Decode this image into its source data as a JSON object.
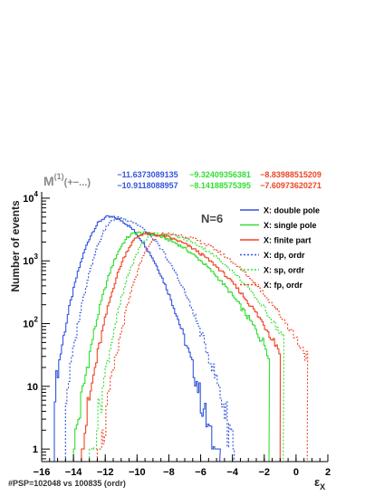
{
  "chart_data": {
    "type": "line",
    "title_main": "M",
    "title_sup": "(1)",
    "title_rest": "(+−...)",
    "annotation": "N=6",
    "ylabel": "Number of events",
    "xlabel_main": "ε",
    "xlabel_sub": "X",
    "xlim": [
      -16,
      2
    ],
    "ylim_log10": [
      -0.2,
      4.1
    ],
    "log_y": true,
    "x_ticks": [
      {
        "v": -16,
        "label": "−16"
      },
      {
        "v": -14,
        "label": "−14"
      },
      {
        "v": -12,
        "label": "−12"
      },
      {
        "v": -10,
        "label": "−10"
      },
      {
        "v": -8,
        "label": "−8"
      },
      {
        "v": -6,
        "label": "−6"
      },
      {
        "v": -4,
        "label": "−4"
      },
      {
        "v": -2,
        "label": "−2"
      },
      {
        "v": 0,
        "label": "0"
      },
      {
        "v": 2,
        "label": "2"
      }
    ],
    "y_ticks": [
      {
        "v": 1,
        "base": "1",
        "exp": ""
      },
      {
        "v": 10,
        "base": "10",
        "exp": ""
      },
      {
        "v": 100,
        "base": "10",
        "exp": "2"
      },
      {
        "v": 1000,
        "base": "10",
        "exp": "3"
      },
      {
        "v": 10000,
        "base": "10",
        "exp": "4"
      }
    ],
    "header_numbers": [
      {
        "row": 1,
        "text": "−11.6373089135",
        "color": "#3355dd"
      },
      {
        "row": 1,
        "text": "−9.32409356381",
        "color": "#33dd33"
      },
      {
        "row": 1,
        "text": "−8.83988515209",
        "color": "#ee4422"
      },
      {
        "row": 2,
        "text": "−10.9118088957",
        "color": "#3355dd"
      },
      {
        "row": 2,
        "text": "−8.14188575395",
        "color": "#33dd33"
      },
      {
        "row": 2,
        "text": "−7.60973620271",
        "color": "#ee4422"
      }
    ],
    "series": [
      {
        "name": "X: double pole",
        "color": "#3355dd",
        "dash": false,
        "shape": {
          "peak": -11.8,
          "peak_y": 5000,
          "left_sigma": 0.95,
          "right_sigma": 1.6,
          "x_min": -15.2,
          "x_max": -4.8
        }
      },
      {
        "name": "X: single pole",
        "color": "#33dd33",
        "dash": false,
        "shape": {
          "peak": -10.0,
          "peak_y": 2800,
          "left_sigma": 1.0,
          "right_sigma": 2.8,
          "x_min": -14.0,
          "x_max": -1.7
        }
      },
      {
        "name": "X: finite part",
        "color": "#ee4422",
        "dash": false,
        "shape": {
          "peak": -9.5,
          "peak_y": 2700,
          "left_sigma": 1.0,
          "right_sigma": 2.9,
          "x_min": -13.5,
          "x_max": -1.0
        }
      },
      {
        "name": "X: dp, ordr",
        "color": "#3355dd",
        "dash": true,
        "shape": {
          "peak": -11.2,
          "peak_y": 4800,
          "left_sigma": 0.9,
          "right_sigma": 1.8,
          "x_min": -14.5,
          "x_max": -3.9
        }
      },
      {
        "name": "X: sp, ordr",
        "color": "#33dd33",
        "dash": true,
        "shape": {
          "peak": -8.8,
          "peak_y": 2700,
          "left_sigma": 1.0,
          "right_sigma": 2.9,
          "x_min": -13.0,
          "x_max": -0.8
        }
      },
      {
        "name": "X: fp, ordr",
        "color": "#ee4422",
        "dash": true,
        "shape": {
          "peak": -8.3,
          "peak_y": 2700,
          "left_sigma": 1.0,
          "right_sigma": 3.0,
          "x_min": -12.5,
          "x_max": 0.7
        }
      }
    ],
    "grid": false,
    "legend_position": "top-right"
  },
  "footer": {
    "text": "#PSP=102048 vs 100835 (ordr)"
  }
}
